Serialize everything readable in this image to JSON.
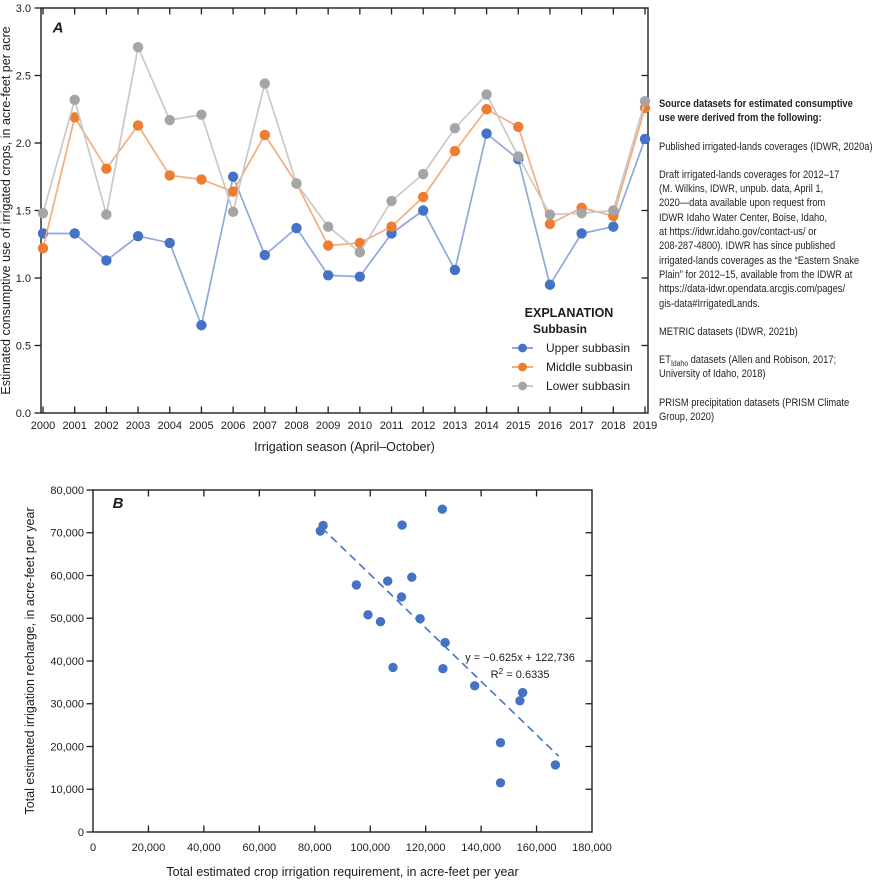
{
  "figure": {
    "background": "#ffffff",
    "text_color": "#231f20",
    "axis_color": "#1f1f1f"
  },
  "source_notes": {
    "heading": "Source datasets for estimated consumptive\nuse were derived from the following:",
    "paragraphs": [
      {
        "text": "Published irrigated-lands coverages (IDWR, 2020a)"
      },
      {
        "text": "Draft irrigated-lands coverages for 2012–17\n(M. Wilkins, IDWR, unpub. data, April 1,\n2020—data available upon request from\nIDWR Idaho Water Center, Boise, Idaho,\nat https://idwr.idaho.gov/contact-us/ or\n208-287-4800). IDWR has since published\nirrigated-lands coverages as the “Eastern Snake\nPlain” for 2012–15, available from the IDWR at\nhttps://data-idwr.opendata.arcgis.com/pages/\ngis-data#IrrigatedLands."
      },
      {
        "text": "METRIC datasets (IDWR, 2021b)"
      },
      {
        "prefix": "ET",
        "subscript": "Idaho",
        "text": " datasets (Allen and Robison, 2017;\nUniversity of Idaho, 2018)"
      },
      {
        "text": "PRISM precipitation datasets (PRISM Climate\nGroup, 2020)"
      }
    ]
  },
  "chart_data": [
    {
      "type": "line",
      "panel_label": "A",
      "x_title": "Irrigation season (April–October)",
      "y_title": "Estimated consumptive use of irrigated crops, in acre-feet per acre",
      "x_categories": [
        2000,
        2001,
        2002,
        2003,
        2004,
        2005,
        2006,
        2007,
        2008,
        2009,
        2010,
        2011,
        2012,
        2013,
        2014,
        2015,
        2016,
        2017,
        2018,
        2019
      ],
      "ylim": [
        0,
        3.0
      ],
      "y_tick_step": 0.5,
      "legend": {
        "title": "EXPLANATION",
        "subtitle": "Subbasin"
      },
      "series": [
        {
          "name": "Upper subbasin",
          "marker_color": "#4472C4",
          "line_color": "#8FA9DC",
          "values": [
            1.33,
            1.33,
            1.13,
            1.31,
            1.26,
            0.65,
            1.75,
            1.17,
            1.37,
            1.02,
            1.01,
            1.33,
            1.5,
            1.06,
            2.07,
            1.88,
            0.95,
            1.33,
            1.38,
            2.03
          ]
        },
        {
          "name": "Middle subbasin",
          "marker_color": "#ED7D31",
          "line_color": "#F4AD7E",
          "values": [
            1.22,
            2.19,
            1.81,
            2.13,
            1.76,
            1.73,
            1.64,
            2.06,
            1.7,
            1.24,
            1.26,
            1.38,
            1.6,
            1.94,
            2.25,
            2.12,
            1.4,
            1.52,
            1.46,
            2.26
          ]
        },
        {
          "name": "Lower subbasin",
          "marker_color": "#A5A5A5",
          "line_color": "#C9C9C9",
          "values": [
            1.48,
            2.32,
            1.47,
            2.71,
            2.17,
            2.21,
            1.49,
            2.44,
            1.7,
            1.38,
            1.19,
            1.57,
            1.77,
            2.11,
            2.36,
            1.9,
            1.47,
            1.48,
            1.5,
            2.31
          ]
        }
      ]
    },
    {
      "type": "scatter",
      "panel_label": "B",
      "x_title": "Total estimated crop irrigation requirement, in acre-feet per year",
      "y_title": "Total estimated irrigation recharge, in acre-feet per year",
      "xlim": [
        0,
        180000
      ],
      "x_tick_step": 20000,
      "ylim": [
        0,
        80000
      ],
      "y_tick_step": 10000,
      "marker_color": "#4472C4",
      "points": [
        [
          82000,
          70400
        ],
        [
          83000,
          71700
        ],
        [
          111500,
          71800
        ],
        [
          126000,
          75500
        ],
        [
          95000,
          57800
        ],
        [
          106300,
          58700
        ],
        [
          115000,
          59600
        ],
        [
          111300,
          55000
        ],
        [
          99200,
          50800
        ],
        [
          103700,
          49200
        ],
        [
          118000,
          49900
        ],
        [
          127000,
          44300
        ],
        [
          108200,
          38500
        ],
        [
          126200,
          38200
        ],
        [
          137700,
          34200
        ],
        [
          155000,
          32600
        ],
        [
          154000,
          30700
        ],
        [
          147000,
          20900
        ],
        [
          166800,
          15700
        ],
        [
          147000,
          11500
        ]
      ],
      "trendline": {
        "slope": -0.625,
        "intercept": 122736,
        "x_start": 82500,
        "x_end": 168000,
        "equation": "y = −0.625x + 122,736",
        "r_squared": "0.6335",
        "style": "dashed",
        "color": "#4472C4"
      }
    }
  ]
}
